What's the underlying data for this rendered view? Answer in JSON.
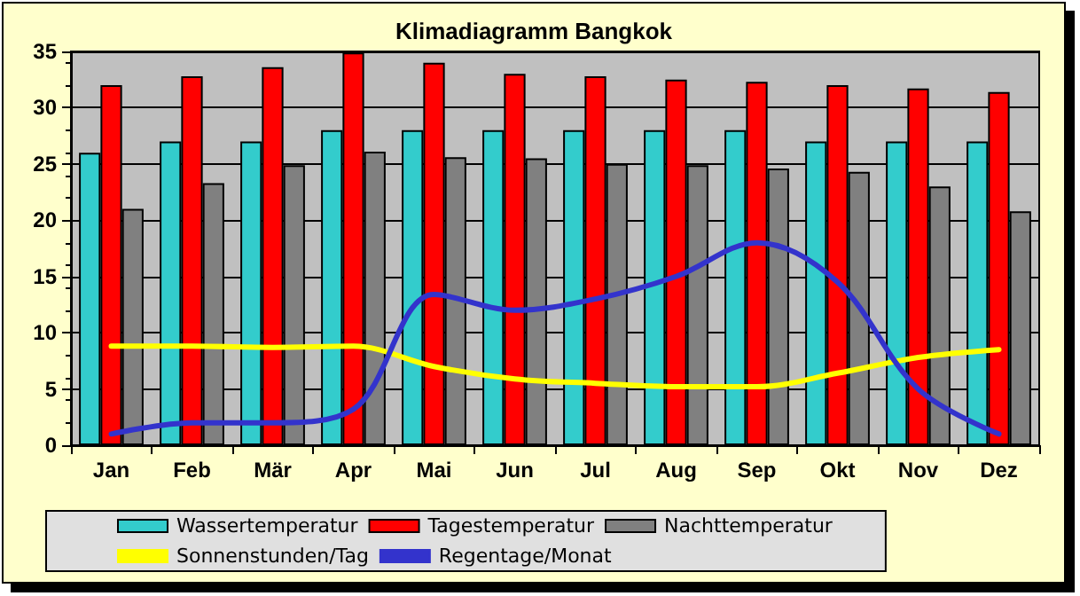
{
  "chart_data": {
    "type": "bar",
    "title": "Klimadiagramm Bangkok",
    "categories": [
      "Jan",
      "Feb",
      "Mär",
      "Apr",
      "Mai",
      "Jun",
      "Jul",
      "Aug",
      "Sep",
      "Okt",
      "Nov",
      "Dez"
    ],
    "series": [
      {
        "name": "Wassertemperatur",
        "color": "#33cccc",
        "values": [
          26,
          27,
          27,
          28,
          28,
          28,
          28,
          28,
          28,
          27,
          27,
          27
        ]
      },
      {
        "name": "Tagestemperatur",
        "color": "#ff0000",
        "values": [
          32,
          32.8,
          33.6,
          34.9,
          34,
          33,
          32.8,
          32.5,
          32.3,
          32,
          31.7,
          31.4
        ]
      },
      {
        "name": "Nachttemperatur",
        "color": "#808080",
        "values": [
          21,
          23.3,
          24.9,
          26.1,
          25.6,
          25.5,
          25,
          24.9,
          24.6,
          24.3,
          23,
          20.8
        ]
      },
      {
        "name": "Sonnenstunden/Tag",
        "type": "line",
        "color": "#ffff00",
        "values": [
          8.8,
          8.8,
          8.7,
          8.8,
          7,
          5.9,
          5.5,
          5.2,
          5.2,
          6.4,
          7.8,
          8.5
        ]
      },
      {
        "name": "Regentage/Monat",
        "type": "line",
        "color": "#3333cc",
        "values": [
          1,
          2,
          2,
          3.2,
          13.4,
          12,
          13,
          15,
          18,
          14.5,
          5,
          1
        ]
      }
    ],
    "ylim": [
      0,
      35
    ],
    "yticks": [
      0,
      5,
      10,
      15,
      20,
      25,
      30,
      35
    ],
    "grid": "y",
    "legend": "bottom",
    "marker": "none"
  }
}
